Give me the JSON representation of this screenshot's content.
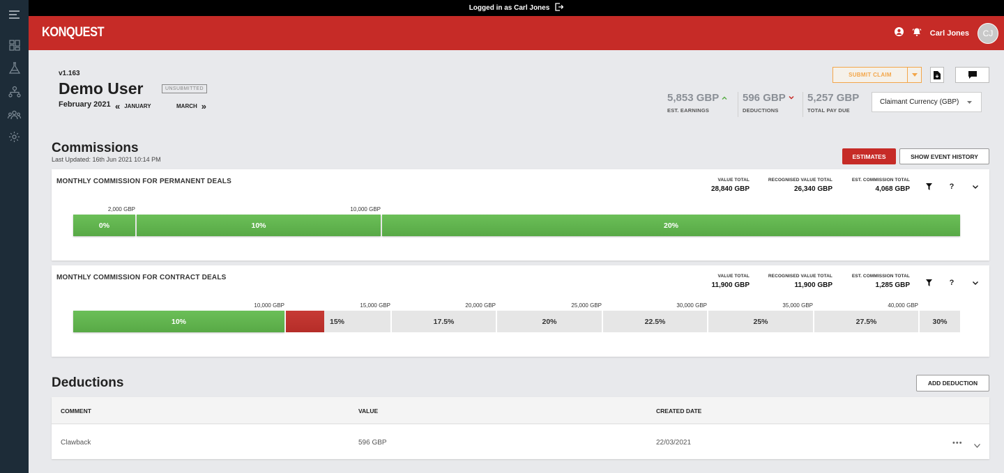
{
  "topbar": {
    "logged_in_text": "Logged in as Carl Jones"
  },
  "header": {
    "logo": "KONQUEST",
    "username": "Carl Jones",
    "avatar_initials": "CJ"
  },
  "sidebar": {
    "icons": [
      "menu-icon",
      "dashboard-icon",
      "flask-icon",
      "hierarchy-icon",
      "team-icon",
      "settings-icon"
    ]
  },
  "page": {
    "version": "v1.163",
    "user": "Demo User",
    "status": "UNSUBMITTED",
    "period": "February 2021",
    "prev_month": "JANUARY",
    "next_month": "MARCH"
  },
  "actions": {
    "submit_claim": "SUBMIT CLAIM"
  },
  "stats": {
    "earnings": {
      "value": "5,853 GBP",
      "label": "EST. EARNINGS",
      "trend": "up"
    },
    "deductions": {
      "value": "596 GBP",
      "label": "DEDUCTIONS",
      "trend": "down"
    },
    "total": {
      "value": "5,257 GBP",
      "label": "TOTAL PAY DUE"
    }
  },
  "currency": {
    "selected": "Claimant Currency (GBP)"
  },
  "commissions": {
    "title": "Commissions",
    "last_updated": "Last Updated: 16th Jun 2021 10:14 PM",
    "estimates_label": "ESTIMATES",
    "history_label": "SHOW EVENT HISTORY",
    "panels": [
      {
        "title": "MONTHLY COMMISSION FOR PERMANENT DEALS",
        "value_total_label": "VALUE TOTAL",
        "value_total": "28,840 GBP",
        "recognised_label": "RECOGNISED VALUE TOTAL",
        "recognised": "26,340 GBP",
        "est_label": "EST. COMMISSION TOTAL",
        "est": "4,068 GBP",
        "ticks": [
          "2,000 GBP",
          "10,000 GBP"
        ],
        "tiers": [
          "0%",
          "10%",
          "20%"
        ]
      },
      {
        "title": "MONTHLY COMMISSION FOR CONTRACT DEALS",
        "value_total_label": "VALUE TOTAL",
        "value_total": "11,900 GBP",
        "recognised_label": "RECOGNISED VALUE TOTAL",
        "recognised": "11,900 GBP",
        "est_label": "EST. COMMISSION TOTAL",
        "est": "1,285 GBP",
        "ticks": [
          "10,000 GBP",
          "15,000 GBP",
          "20,000 GBP",
          "25,000 GBP",
          "30,000 GBP",
          "35,000 GBP",
          "40,000 GBP"
        ],
        "tiers": [
          "10%",
          "15%",
          "17.5%",
          "20%",
          "22.5%",
          "25%",
          "27.5%",
          "30%"
        ]
      }
    ]
  },
  "deductions": {
    "title": "Deductions",
    "add_label": "ADD DEDUCTION",
    "columns": [
      "COMMENT",
      "VALUE",
      "CREATED DATE"
    ],
    "rows": [
      {
        "comment": "Clawback",
        "value": "596 GBP",
        "date": "22/03/2021"
      }
    ]
  },
  "colors": {
    "brand_red": "#c62b27",
    "sidebar": "#1d2c38",
    "green": "#5cae4a",
    "orange": "#f3a64a"
  }
}
